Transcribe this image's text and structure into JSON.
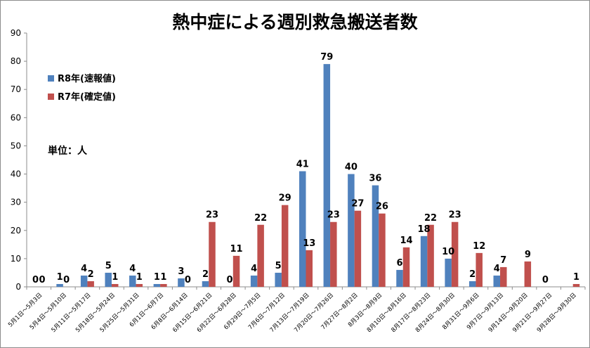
{
  "chart_data": {
    "type": "bar",
    "title": "熱中症による週別救急搬送者数",
    "unit_note": "単位：人",
    "ylim": [
      0,
      90
    ],
    "yticks": [
      0,
      10,
      20,
      30,
      40,
      50,
      60,
      70,
      80,
      90
    ],
    "grid": false,
    "legend_position": "top-left",
    "categories": [
      "5月1日～5月3日",
      "5月4日～5月10日",
      "5月11日～5月17日",
      "5月18日～5月24日",
      "5月25日～5月31日",
      "6月1日～6月7日",
      "6月8日～6月14日",
      "6月15日～6月21日",
      "6月22日～6月28日",
      "6月29日～7月5日",
      "7月6日～7月12日",
      "7月13日～7月19日",
      "7月20日～7月26日",
      "7月27日～8月2日",
      "8月3日～8月9日",
      "8月10日～8月16日",
      "8月17日～8月23日",
      "8月24日～8月30日",
      "8月31日～9月6日",
      "9月7日～9月13日",
      "9月14日～9月20日",
      "9月21日～9月27日",
      "9月28日～9月30日"
    ],
    "series": [
      {
        "name": "R8年(速報値)",
        "color": "#4f81bd",
        "values": [
          0,
          1,
          4,
          5,
          4,
          1,
          3,
          2,
          0,
          4,
          5,
          41,
          79,
          40,
          36,
          6,
          18,
          10,
          2,
          4,
          null,
          0,
          null
        ],
        "labels": [
          "0",
          "1",
          "4",
          "5",
          "4",
          "1",
          "3",
          "2",
          "0",
          "4",
          "5",
          "41",
          "79",
          "40",
          "36",
          "6",
          "18",
          "10",
          "2",
          "4",
          "",
          "0",
          ""
        ]
      },
      {
        "name": "R7年(確定値)",
        "color": "#c0504d",
        "values": [
          0,
          0,
          2,
          1,
          1,
          1,
          0,
          23,
          11,
          22,
          29,
          13,
          23,
          27,
          26,
          14,
          22,
          23,
          12,
          7,
          9,
          0,
          1
        ],
        "labels": [
          "0",
          "0",
          "2",
          "1",
          "1",
          "1",
          "0",
          "23",
          "11",
          "22",
          "29",
          "13",
          "23",
          "27",
          "26",
          "14",
          "22",
          "23",
          "12",
          "7",
          "9",
          "",
          "1"
        ]
      }
    ]
  }
}
